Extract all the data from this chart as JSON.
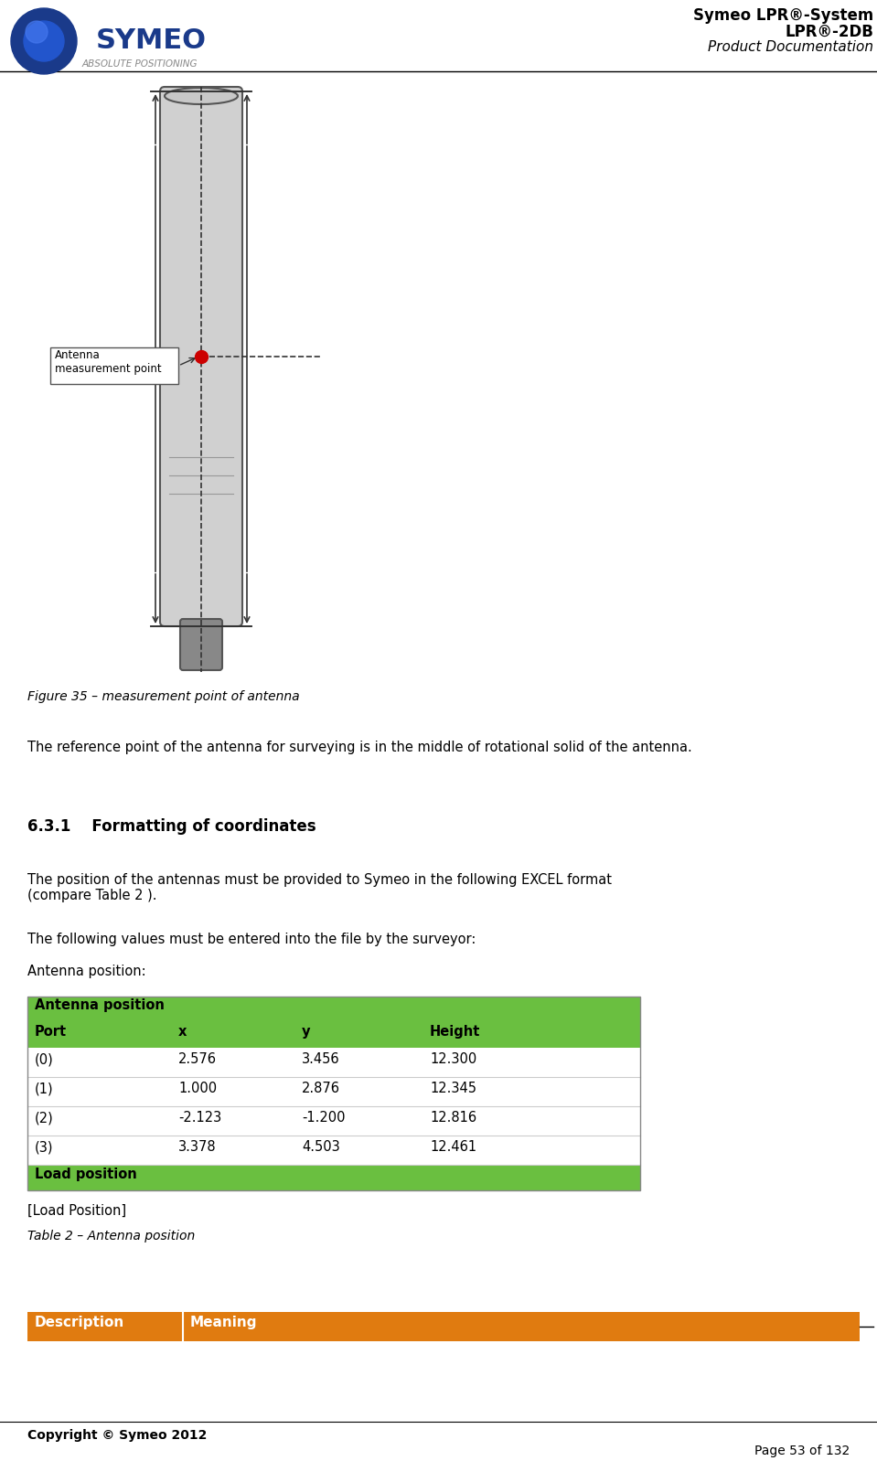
{
  "page_width": 9.59,
  "page_height": 15.98,
  "bg_color": "#ffffff",
  "header": {
    "logo_text": "SYMEO",
    "logo_subtext": "ABSOLUTE POSITIONING",
    "title_line1": "Symeo LPR®-System",
    "title_line2": "LPR®-2DB",
    "title_line3": "Product Documentation"
  },
  "figure_caption": "Figure 35 – measurement point of antenna",
  "antenna_label": "Antenna\nmeasurement point",
  "body_text1": "The reference point of the antenna for surveying is in the middle of rotational solid of the antenna.",
  "section_heading": "6.3.1    Formatting of coordinates",
  "body_text2": "The position of the antennas must be provided to Symeo in the following EXCEL format\n(compare Table 2 ).",
  "body_text3": "The following values must be entered into the file by the surveyor:",
  "body_text4": "Antenna position:",
  "table_header_bg": "#6abf40",
  "table_header_text_color": "#000000",
  "table_header1": "Antenna position",
  "table_col_headers": [
    "Port",
    "x",
    "y",
    "Height"
  ],
  "table_rows": [
    [
      "(0)",
      "2.576",
      "3.456",
      "12.300"
    ],
    [
      "(1)",
      "1.000",
      "2.876",
      "12.345"
    ],
    [
      "(2)",
      "-2.123",
      "-1.200",
      "12.816"
    ],
    [
      "(3)",
      "3.378",
      "4.503",
      "12.461"
    ]
  ],
  "table_load_row": "Load position",
  "table_load_bg": "#6abf40",
  "table_footer_text1": "[Load Position]",
  "table_footer_text2": "Table 2 – Antenna position",
  "bottom_table_header1": "Description",
  "bottom_table_header2": "Meaning",
  "bottom_table_bg": "#e07b10",
  "bottom_table_text_color": "#ffffff",
  "footer_copyright": "Copyright © Symeo 2012",
  "footer_page": "Page 53 of 132",
  "header_line_color": "#000000",
  "separator_line_color": "#000000"
}
